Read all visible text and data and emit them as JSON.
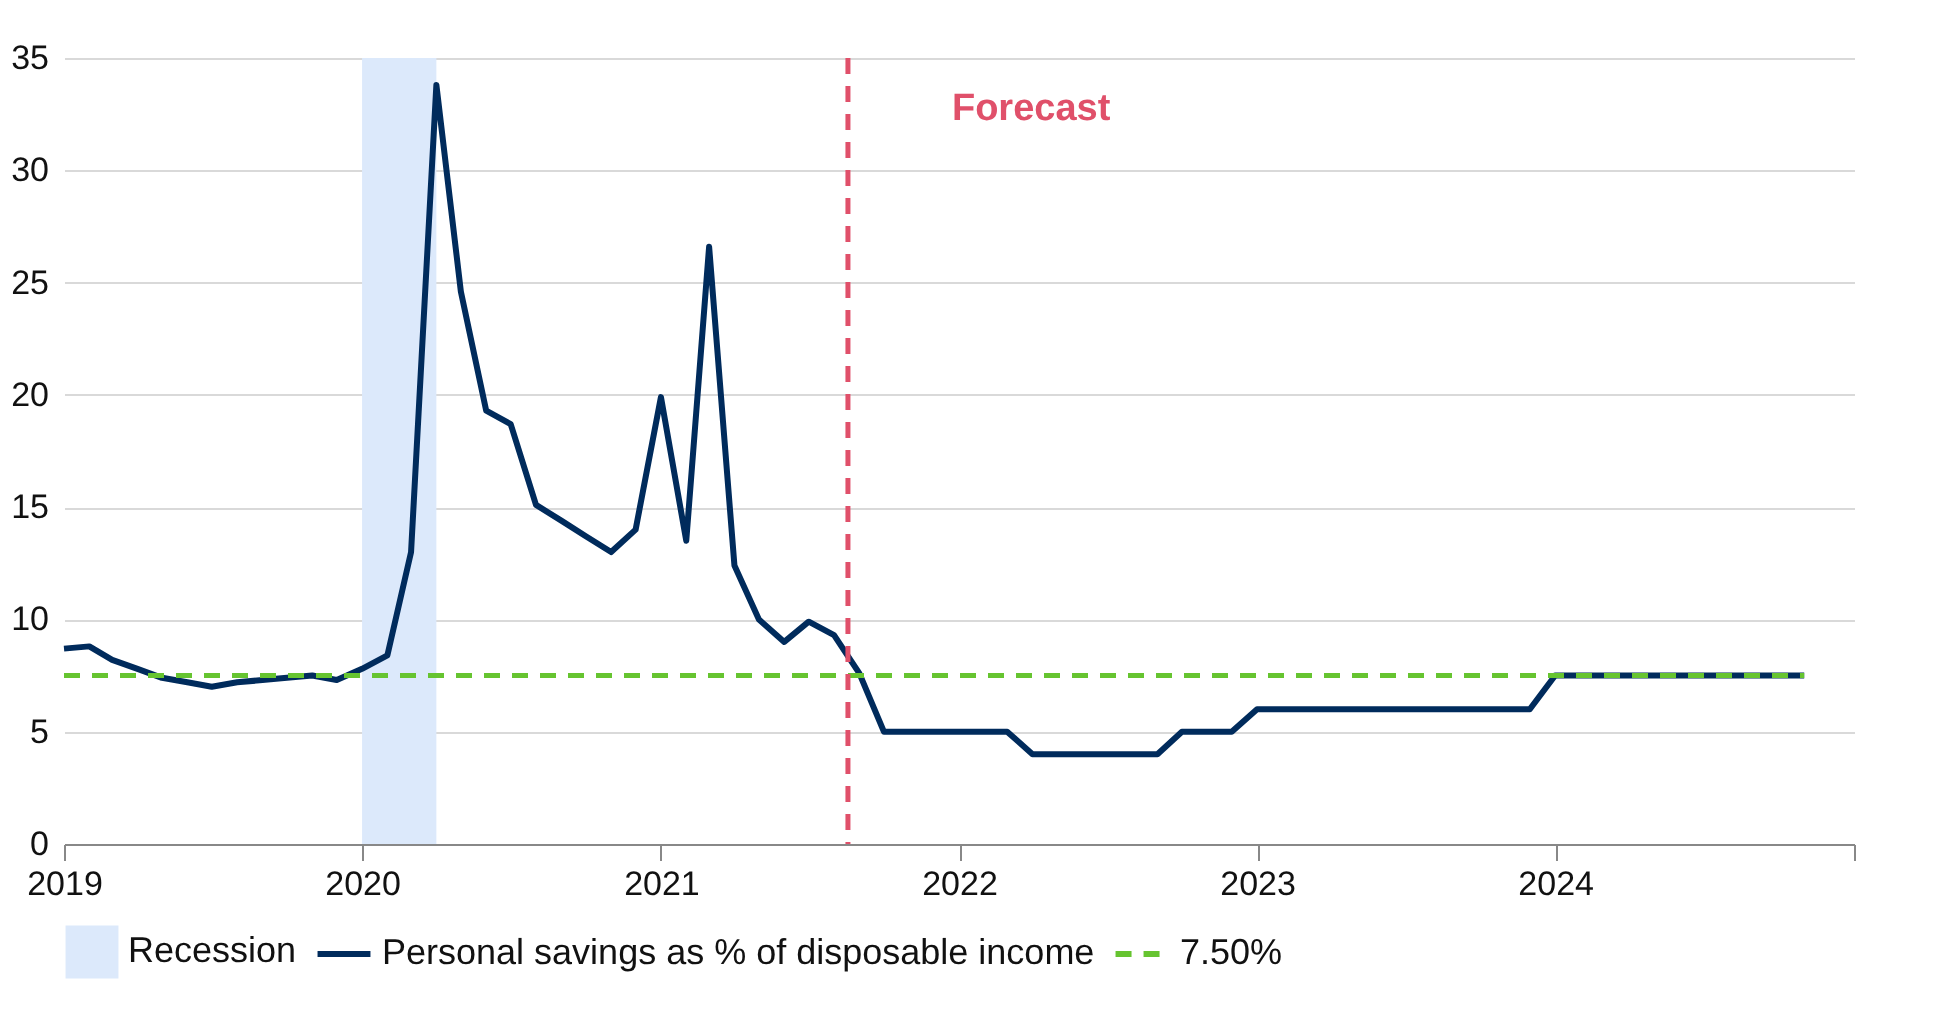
{
  "chart_data": {
    "type": "line",
    "x": [
      "2019-01",
      "2019-02",
      "2019-03",
      "2019-04",
      "2019-05",
      "2019-06",
      "2019-07",
      "2019-08",
      "2019-09",
      "2019-10",
      "2019-11",
      "2019-12",
      "2020-01",
      "2020-02",
      "2020-03",
      "2020-04",
      "2020-05",
      "2020-06",
      "2020-07",
      "2020-08",
      "2020-09",
      "2020-10",
      "2020-11",
      "2020-12",
      "2021-01",
      "2021-02",
      "2021-03",
      "2021-04",
      "2021-05",
      "2021-06",
      "2021-07",
      "2021-08",
      "2021-09",
      "2021-10",
      "2021-11",
      "2021-12",
      "2022-01",
      "2022-02",
      "2022-03",
      "2022-04",
      "2022-05",
      "2022-06",
      "2022-07",
      "2022-08",
      "2022-09",
      "2022-10",
      "2022-11",
      "2022-12",
      "2023-01",
      "2023-02",
      "2023-03",
      "2023-04",
      "2023-05",
      "2023-06",
      "2023-07",
      "2023-08",
      "2023-09",
      "2023-10",
      "2023-11",
      "2023-12",
      "2024-01",
      "2024-02",
      "2024-03",
      "2024-04",
      "2024-05",
      "2024-06",
      "2024-07",
      "2024-08",
      "2024-09",
      "2024-10",
      "2024-11"
    ],
    "series": [
      {
        "name": "Personal savings as % of disposable income",
        "color": "#002b5c",
        "values": [
          8.7,
          8.8,
          8.2,
          7.8,
          7.4,
          7.2,
          7.0,
          7.2,
          7.3,
          7.4,
          7.5,
          7.3,
          7.8,
          8.4,
          13.0,
          33.8,
          24.6,
          19.3,
          18.7,
          15.1,
          14.4,
          13.7,
          13.0,
          14.0,
          19.9,
          13.5,
          26.6,
          12.4,
          10.0,
          9.0,
          9.9,
          9.3,
          7.6,
          5,
          5,
          5,
          5,
          5,
          5,
          4,
          4,
          4,
          4,
          4,
          4,
          5,
          5,
          5,
          6,
          6,
          6,
          6,
          6,
          6,
          6,
          6,
          6,
          6,
          6,
          6,
          7.5,
          7.5,
          7.5,
          7.5,
          7.5,
          7.5,
          7.5,
          7.5,
          7.5,
          7.5,
          7.5
        ]
      }
    ],
    "xlim": [
      "2019",
      "2025"
    ],
    "xticks": [
      "2019",
      "2020",
      "2021",
      "2022",
      "2023",
      "2024",
      {
        "value": "2025",
        "label": null
      }
    ],
    "ylim": [
      0,
      35
    ],
    "yticks": [
      0,
      5,
      10,
      15,
      20,
      25,
      30,
      35
    ],
    "grid": "y",
    "legend": "bottom",
    "marker": "none",
    "line_style": "solid",
    "bands": [
      {
        "axis": "x",
        "from": "2020-01",
        "to": "2020-04",
        "label": "Recession",
        "color": "#dce9fb"
      }
    ],
    "ref_lines": [
      {
        "axis": "y",
        "value": 7.5,
        "label": "7.50%",
        "color": "#66c430",
        "line_style": "dashed"
      },
      {
        "axis": "x",
        "value": "2021-08-18",
        "label": "Forecast",
        "color": "#e0506a",
        "line_style": "dashed"
      }
    ]
  }
}
